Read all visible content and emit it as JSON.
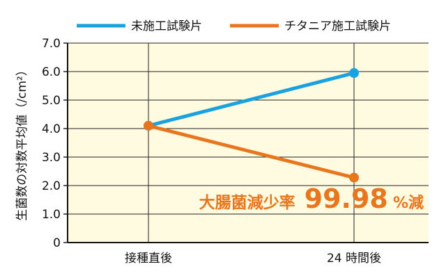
{
  "chart_data": {
    "type": "line",
    "categories": [
      "接種直後",
      "24 時間後"
    ],
    "series": [
      {
        "name": "未施工試験片",
        "values": [
          4.1,
          5.95
        ],
        "color": "#1aa1e0"
      },
      {
        "name": "チタニア施工試験片",
        "values": [
          4.1,
          2.28
        ],
        "color": "#e8761e"
      }
    ],
    "ylabel": "生菌数の対数平均値（/cm²）",
    "ylim": [
      0,
      7
    ],
    "yticks": [
      "0",
      "1.0",
      "2.0",
      "3.0",
      "4.0",
      "5.0",
      "6.0",
      "7.0"
    ],
    "grid": "horizontal and vertical",
    "legend": "top",
    "plot_background": "#fffbe0",
    "annotation": {
      "text": "大腸菌減少率",
      "value": "99.98",
      "unit": "%減",
      "color": "#e8761e"
    }
  }
}
